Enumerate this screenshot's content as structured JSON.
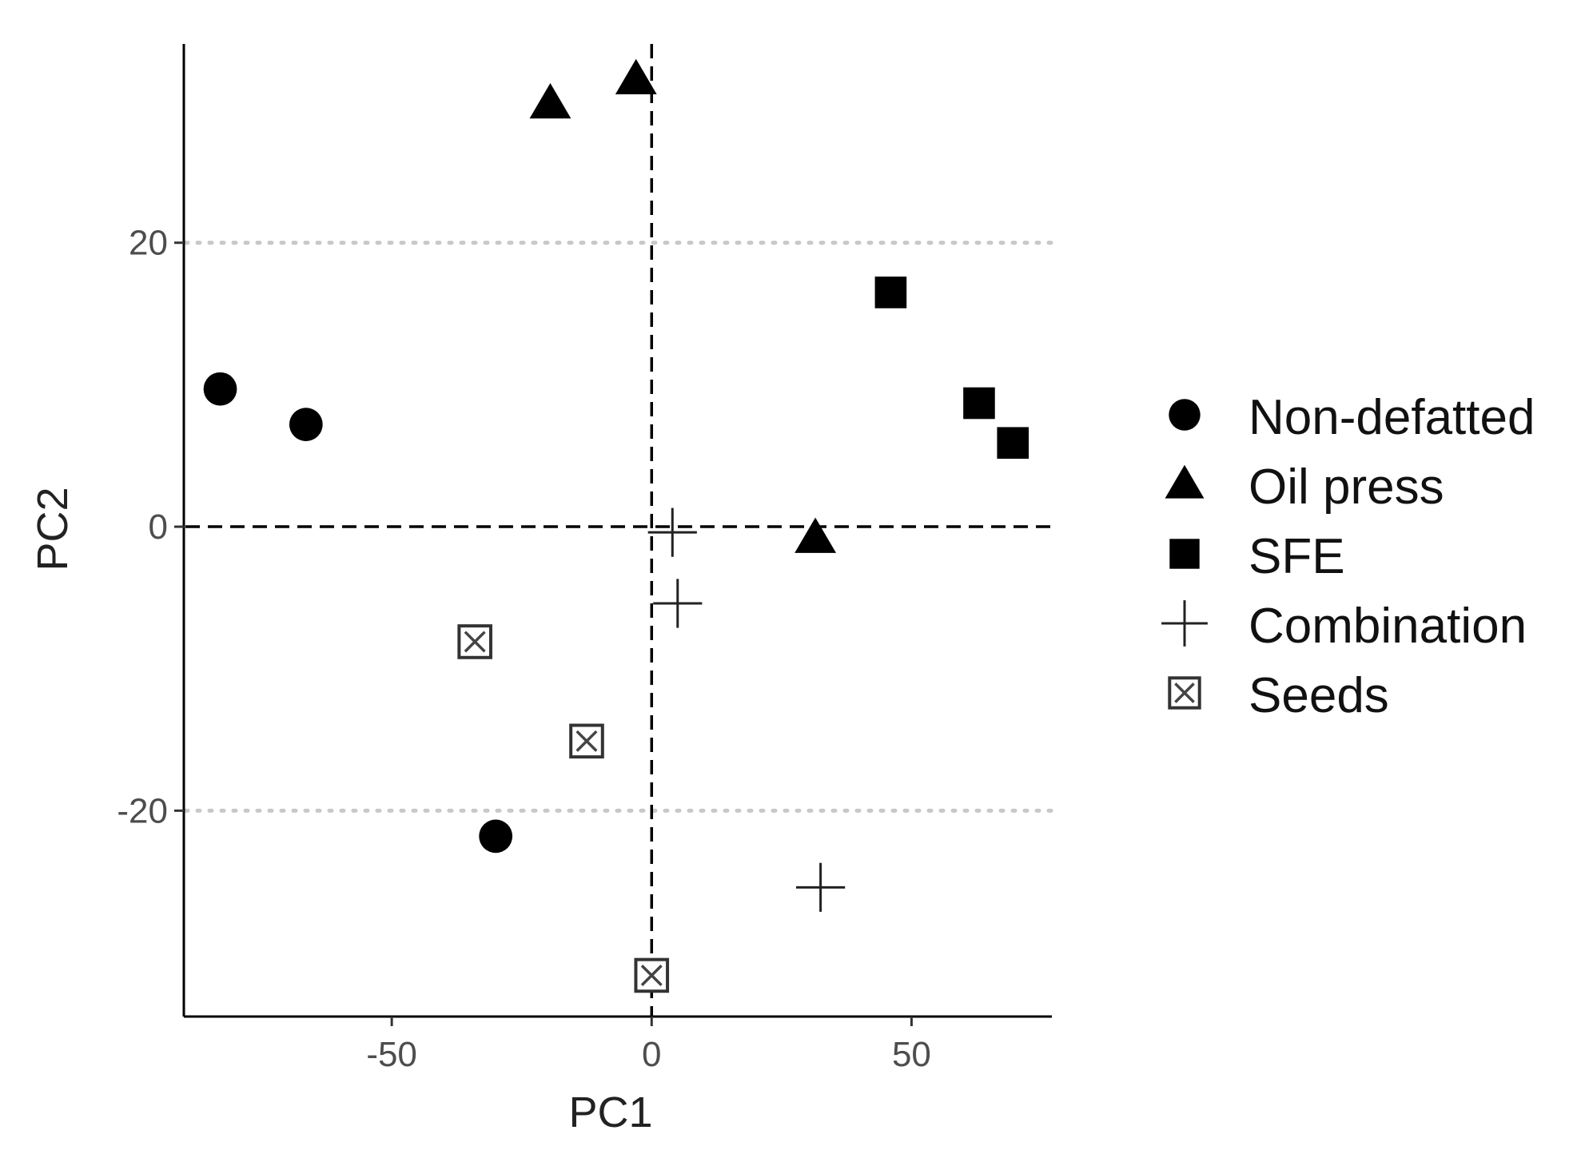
{
  "chart_data": {
    "type": "scatter",
    "title": "",
    "xlabel": "PC1",
    "ylabel": "PC2",
    "xlim": [
      -90,
      77
    ],
    "ylim": [
      -34.5,
      34
    ],
    "xticks": [
      {
        "value": -50,
        "label": "-50"
      },
      {
        "value": 0,
        "label": "0"
      },
      {
        "value": 50,
        "label": "50"
      }
    ],
    "yticks": [
      {
        "value": 20,
        "label": "20"
      },
      {
        "value": 0,
        "label": "0"
      },
      {
        "value": -20,
        "label": "-20"
      }
    ],
    "hlines": [
      {
        "y": 20,
        "style": "dotted",
        "color": "#c8c8c8"
      },
      {
        "y": -20,
        "style": "dotted",
        "color": "#c8c8c8"
      },
      {
        "y": 0,
        "style": "dashed",
        "color": "#000000"
      }
    ],
    "vlines": [
      {
        "x": 0,
        "style": "dashed",
        "color": "#000000"
      }
    ],
    "legend_position": "right",
    "series": [
      {
        "name": "Non-defatted",
        "shape": "circle",
        "color": "#000000",
        "points": [
          {
            "x": -83,
            "y": 9.7
          },
          {
            "x": -66.5,
            "y": 7.2
          },
          {
            "x": -30,
            "y": -21.8
          }
        ]
      },
      {
        "name": "Oil press",
        "shape": "triangle",
        "color": "#000000",
        "points": [
          {
            "x": -19.5,
            "y": 29.8
          },
          {
            "x": -3,
            "y": 31.5
          },
          {
            "x": 31.5,
            "y": -0.8
          }
        ]
      },
      {
        "name": "SFE",
        "shape": "square",
        "color": "#000000",
        "points": [
          {
            "x": 46,
            "y": 16.5
          },
          {
            "x": 63,
            "y": 8.7
          },
          {
            "x": 69.5,
            "y": 5.9
          }
        ]
      },
      {
        "name": "Combination",
        "shape": "plus",
        "color": "#000000",
        "points": [
          {
            "x": 4,
            "y": -0.4
          },
          {
            "x": 5,
            "y": -5.4
          },
          {
            "x": 32.5,
            "y": -25.4
          }
        ]
      },
      {
        "name": "Seeds",
        "shape": "boxx",
        "color": "#000000",
        "points": [
          {
            "x": -34,
            "y": -8.1
          },
          {
            "x": -12.5,
            "y": -15.1
          },
          {
            "x": 0,
            "y": -31.6
          }
        ]
      }
    ]
  }
}
